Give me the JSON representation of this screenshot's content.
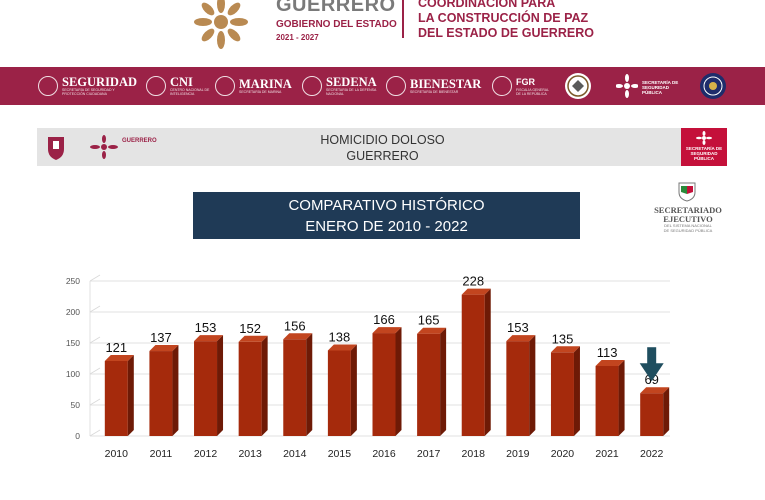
{
  "header": {
    "gov_title": "GUERRERO",
    "gov_subtitle": "GOBIERNO DEL ESTADO",
    "gov_years": "2021 - 2027",
    "right_lines": [
      "COORDINACIÓN PARA",
      "LA CONSTRUCCIÓN DE PAZ",
      "DEL ESTADO DE GUERRERO"
    ],
    "emblem_icon": "guerrero-flower-emblem-icon"
  },
  "band": {
    "color": "#9b2247",
    "institutions": [
      {
        "name": "SEGURIDAD",
        "sub": "SECRETARÍA DE SEGURIDAD Y PROTECCIÓN CIUDADANA"
      },
      {
        "name": "CNI",
        "sub": "CENTRO NACIONAL DE INTELIGENCIA"
      },
      {
        "name": "MARINA",
        "sub": "SECRETARÍA DE MARINA"
      },
      {
        "name": "SEDENA",
        "sub": "SECRETARÍA DE LA DEFENSA NACIONAL"
      },
      {
        "name": "BIENESTAR",
        "sub": "SECRETARÍA DE BIENESTAR"
      },
      {
        "name": "FGR",
        "sub": "FISCALÍA GENERAL DE LA REPÚBLICA"
      }
    ],
    "right_seals": [
      "guardia-nacional-seal-icon",
      "ssp-guerrero-flower-icon",
      "police-seal-icon"
    ],
    "ssp_label": "SECRETARÍA DE SEGURIDAD PÚBLICA"
  },
  "strip": {
    "line1": "HOMICIDIO DOLOSO",
    "line2": "GUERRERO",
    "logo_text": "GUERRERO",
    "ssp_label": "SECRETARÍA DE SEGURIDAD PÚBLICA"
  },
  "comparative": {
    "line1": "COMPARATIVO HISTÓRICO",
    "line2": "ENERO DE 2010 - 2022",
    "box_color": "#1f3a56"
  },
  "sesnsp": {
    "name_lines": [
      "SECRETARIADO",
      "EJECUTIVO"
    ],
    "sub_lines": [
      "DEL SISTEMA NACIONAL",
      "DE SEGURIDAD PÚBLICA"
    ]
  },
  "chart_data": {
    "type": "bar",
    "categories": [
      "2010",
      "2011",
      "2012",
      "2013",
      "2014",
      "2015",
      "2016",
      "2017",
      "2018",
      "2019",
      "2020",
      "2021",
      "2022"
    ],
    "values": [
      121,
      137,
      153,
      152,
      156,
      138,
      166,
      165,
      228,
      153,
      135,
      113,
      69
    ],
    "ylim": [
      0,
      250
    ],
    "yticks": [
      0,
      50,
      100,
      150,
      200,
      250
    ],
    "bar_color": "#a52a0c",
    "grid": true,
    "highlight": {
      "category": "2022",
      "marker": "down-arrow-icon",
      "color": "#1f4e5f"
    }
  }
}
